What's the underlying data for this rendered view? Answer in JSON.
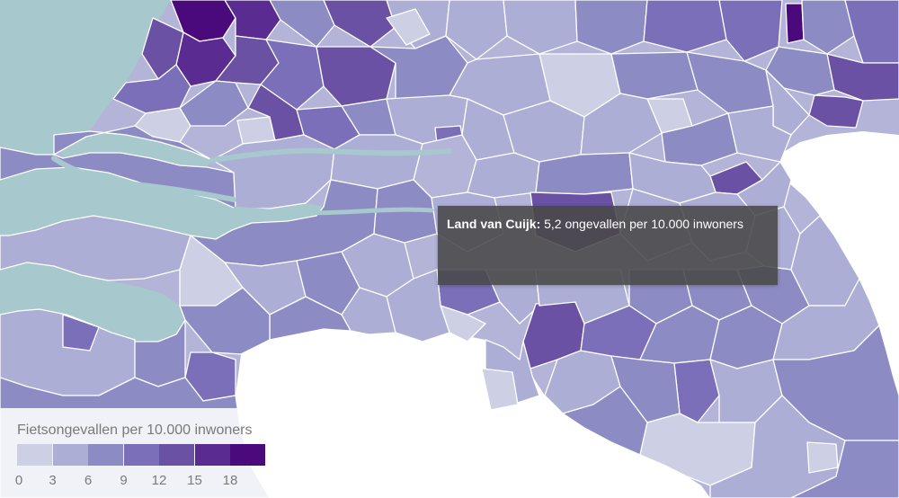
{
  "tooltip": {
    "place": "Land van Cuijk:",
    "value_text": " 5,2 ongevallen per 10.000 inwoners"
  },
  "legend": {
    "title": "Fietsongevallen per 10.000 inwoners",
    "ticks": [
      "0",
      "3",
      "6",
      "9",
      "12",
      "15",
      "18"
    ],
    "colors": [
      "#cdd0e5",
      "#adaed6",
      "#8c8bc4",
      "#7a6fb8",
      "#6a51a3",
      "#5a2c92",
      "#4b0a7c"
    ]
  },
  "map_colors": {
    "water": "#a7c8cc",
    "land_outside": "#ffffff"
  }
}
